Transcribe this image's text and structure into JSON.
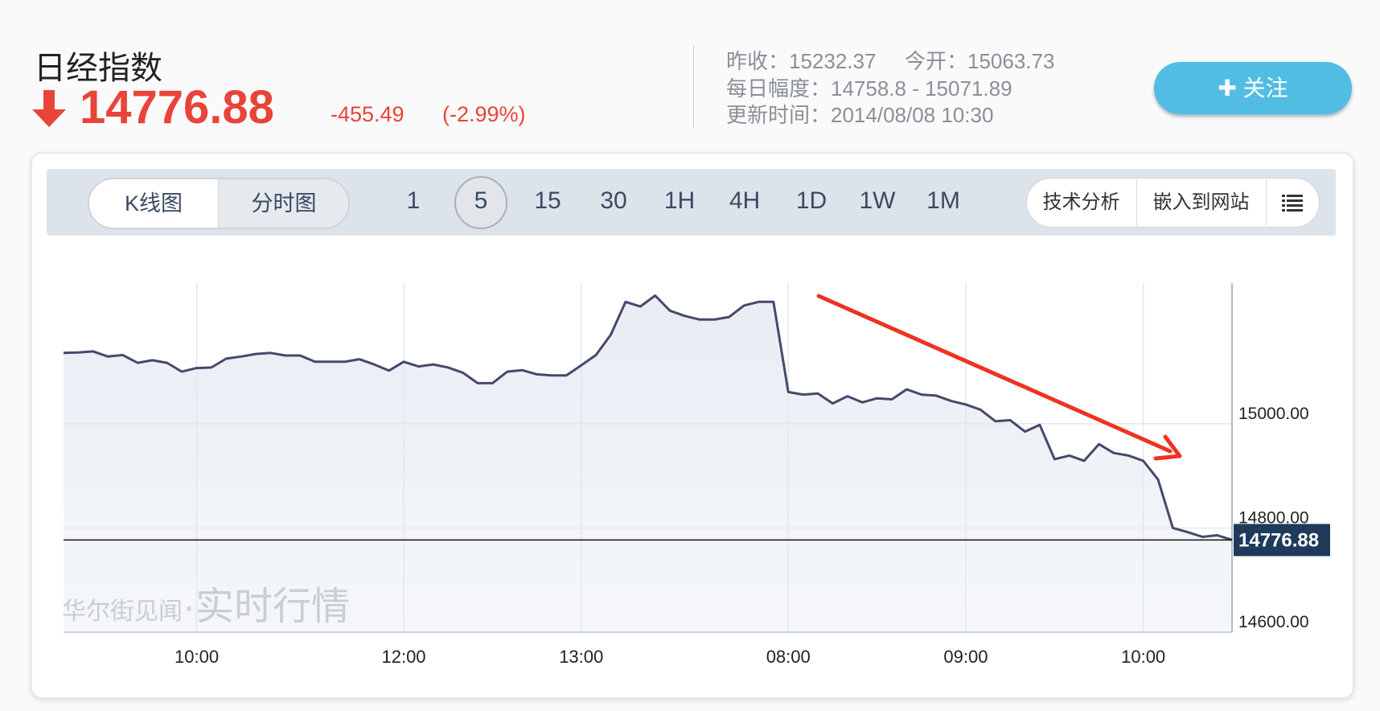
{
  "header": {
    "title": "日经指数",
    "price": "14776.88",
    "change": "-455.49",
    "change_pct": "(-2.99%)",
    "prev_close": "昨收：15232.37",
    "open": "今开：15063.73",
    "day_range": "每日幅度：14758.8 - 15071.89",
    "updated": "更新时间：2014/08/08 10:30",
    "follow_button": "关注"
  },
  "toolbar": {
    "chart_modes": [
      "K线图",
      "分时图"
    ],
    "periods": [
      "1",
      "5",
      "15",
      "30",
      "1H",
      "4H",
      "1D",
      "1W",
      "1M"
    ],
    "tools": [
      "技术分析",
      "嵌入到网站"
    ]
  },
  "chart_data": {
    "type": "line",
    "grid": true,
    "categories": [
      null,
      null,
      null,
      null,
      null,
      null,
      null,
      null,
      null,
      "10:00",
      null,
      null,
      null,
      null,
      null,
      null,
      null,
      null,
      null,
      null,
      null,
      null,
      null,
      "12:00",
      null,
      null,
      null,
      null,
      null,
      null,
      null,
      null,
      null,
      null,
      null,
      "13:00",
      null,
      null,
      null,
      null,
      null,
      null,
      null,
      null,
      null,
      null,
      null,
      null,
      null,
      "08:00",
      null,
      null,
      null,
      null,
      null,
      null,
      null,
      null,
      null,
      null,
      null,
      "09:00",
      null,
      null,
      null,
      null,
      null,
      null,
      null,
      null,
      null,
      null,
      null,
      "10:00",
      null,
      null,
      null,
      null,
      null,
      null
    ],
    "series": [
      {
        "name": "日经指数",
        "color": "#454a6b",
        "values": [
          15136,
          15137,
          15139,
          15129,
          15132,
          15117,
          15122,
          15117,
          15100,
          15107,
          15108,
          15125,
          15129,
          15134,
          15136,
          15131,
          15131,
          15119,
          15119,
          15119,
          15124,
          15114,
          15102,
          15119,
          15110,
          15114,
          15108,
          15098,
          15078,
          15078,
          15100,
          15103,
          15095,
          15093,
          15093,
          15112,
          15132,
          15171,
          15234,
          15225,
          15246,
          15217,
          15207,
          15200,
          15200,
          15205,
          15227,
          15234,
          15234,
          15061,
          15056,
          15058,
          15039,
          15053,
          15041,
          15049,
          15047,
          15066,
          15056,
          15054,
          15044,
          15037,
          15027,
          15005,
          15007,
          14985,
          14998,
          14932,
          14939,
          14929,
          14961,
          14944,
          14939,
          14929,
          14893,
          14800,
          14792,
          14783,
          14786,
          14777
        ]
      }
    ],
    "ylim": [
      14600,
      15270
    ],
    "yticks": [
      {
        "value": 14600,
        "label": "14600.00"
      },
      {
        "value": 14800,
        "label": "14800.00"
      },
      {
        "value": 15000,
        "label": "15000.00"
      }
    ],
    "current_value": 14776.88,
    "watermark": {
      "brand": "华尔街见闻",
      "tag": "·实时行情"
    }
  }
}
